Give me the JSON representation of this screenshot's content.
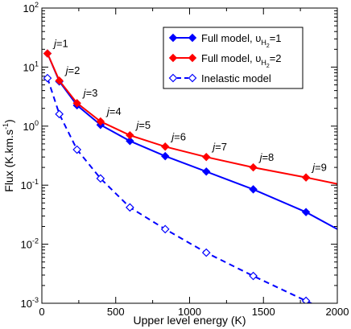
{
  "chart_data": {
    "type": "line",
    "xlabel": "Upper level energy (K)",
    "ylabel": {
      "main": "Flux (K.km.s",
      "sup": "-1",
      "close": ")"
    },
    "xlim": [
      0,
      2000
    ],
    "ylim": [
      0.001,
      100
    ],
    "yscale": "log",
    "grid": false,
    "legend_position": "top-right",
    "x_ticks": [
      {
        "value": 0,
        "label": "0"
      },
      {
        "value": 500,
        "label": "500"
      },
      {
        "value": 1000,
        "label": "1000"
      },
      {
        "value": 1500,
        "label": "1500"
      },
      {
        "value": 2000,
        "label": "2000"
      }
    ],
    "y_ticks": [
      {
        "value": 0.001,
        "base": "10",
        "exp": "-3"
      },
      {
        "value": 0.01,
        "base": "10",
        "exp": "-2"
      },
      {
        "value": 0.1,
        "base": "10",
        "exp": "-1"
      },
      {
        "value": 1,
        "base": "10",
        "exp": "0"
      },
      {
        "value": 10,
        "base": "10",
        "exp": "1"
      },
      {
        "value": 100,
        "base": "10",
        "exp": "2"
      }
    ],
    "series": [
      {
        "legend": {
          "pre": "Full model, ",
          "sym": "υ",
          "sub": "H",
          "subsub": "2",
          "post": "=1"
        },
        "color": "#0000ff",
        "marker": "diamond-filled",
        "dashed": false,
        "points": [
          {
            "x": 38,
            "y": 17
          },
          {
            "x": 118,
            "y": 5.7
          },
          {
            "x": 238,
            "y": 2.25
          },
          {
            "x": 397,
            "y": 1.05
          },
          {
            "x": 596,
            "y": 0.56
          },
          {
            "x": 835,
            "y": 0.31
          },
          {
            "x": 1113,
            "y": 0.17
          },
          {
            "x": 1431,
            "y": 0.085
          },
          {
            "x": 1788,
            "y": 0.035
          },
          {
            "x": 2000,
            "y": 0.018
          }
        ]
      },
      {
        "legend": {
          "pre": "Full model, ",
          "sym": "υ",
          "sub": "H",
          "subsub": "2",
          "post": "=2"
        },
        "color": "#ff0000",
        "marker": "diamond-filled",
        "dashed": false,
        "points": [
          {
            "x": 38,
            "y": 17
          },
          {
            "x": 118,
            "y": 5.9
          },
          {
            "x": 238,
            "y": 2.45
          },
          {
            "x": 397,
            "y": 1.2
          },
          {
            "x": 596,
            "y": 0.7
          },
          {
            "x": 835,
            "y": 0.45
          },
          {
            "x": 1113,
            "y": 0.3
          },
          {
            "x": 1431,
            "y": 0.2
          },
          {
            "x": 1788,
            "y": 0.135
          },
          {
            "x": 2000,
            "y": 0.105
          }
        ]
      },
      {
        "legend": {
          "pre": "Inelastic model",
          "sym": "",
          "sub": "",
          "subsub": "",
          "post": ""
        },
        "color": "#0000ff",
        "marker": "diamond-open",
        "dashed": true,
        "points": [
          {
            "x": 38,
            "y": 6.5
          },
          {
            "x": 118,
            "y": 1.6
          },
          {
            "x": 238,
            "y": 0.4
          },
          {
            "x": 397,
            "y": 0.13
          },
          {
            "x": 596,
            "y": 0.042
          },
          {
            "x": 835,
            "y": 0.018
          },
          {
            "x": 1113,
            "y": 0.0072
          },
          {
            "x": 1431,
            "y": 0.0029
          },
          {
            "x": 1788,
            "y": 0.0011
          },
          {
            "x": 2000,
            "y": 0.00062
          }
        ],
        "marker_count": 9
      }
    ],
    "annotations": [
      {
        "text": "j=1",
        "x": 38,
        "y": 17
      },
      {
        "text": "j=2",
        "x": 118,
        "y": 5.9
      },
      {
        "text": "j=3",
        "x": 238,
        "y": 2.45
      },
      {
        "text": "j=4",
        "x": 397,
        "y": 1.2
      },
      {
        "text": "j=5",
        "x": 596,
        "y": 0.7
      },
      {
        "text": "j=6",
        "x": 835,
        "y": 0.45
      },
      {
        "text": "j=7",
        "x": 1113,
        "y": 0.3
      },
      {
        "text": "j=8",
        "x": 1431,
        "y": 0.2
      },
      {
        "text": "j=9",
        "x": 1788,
        "y": 0.135
      }
    ]
  }
}
